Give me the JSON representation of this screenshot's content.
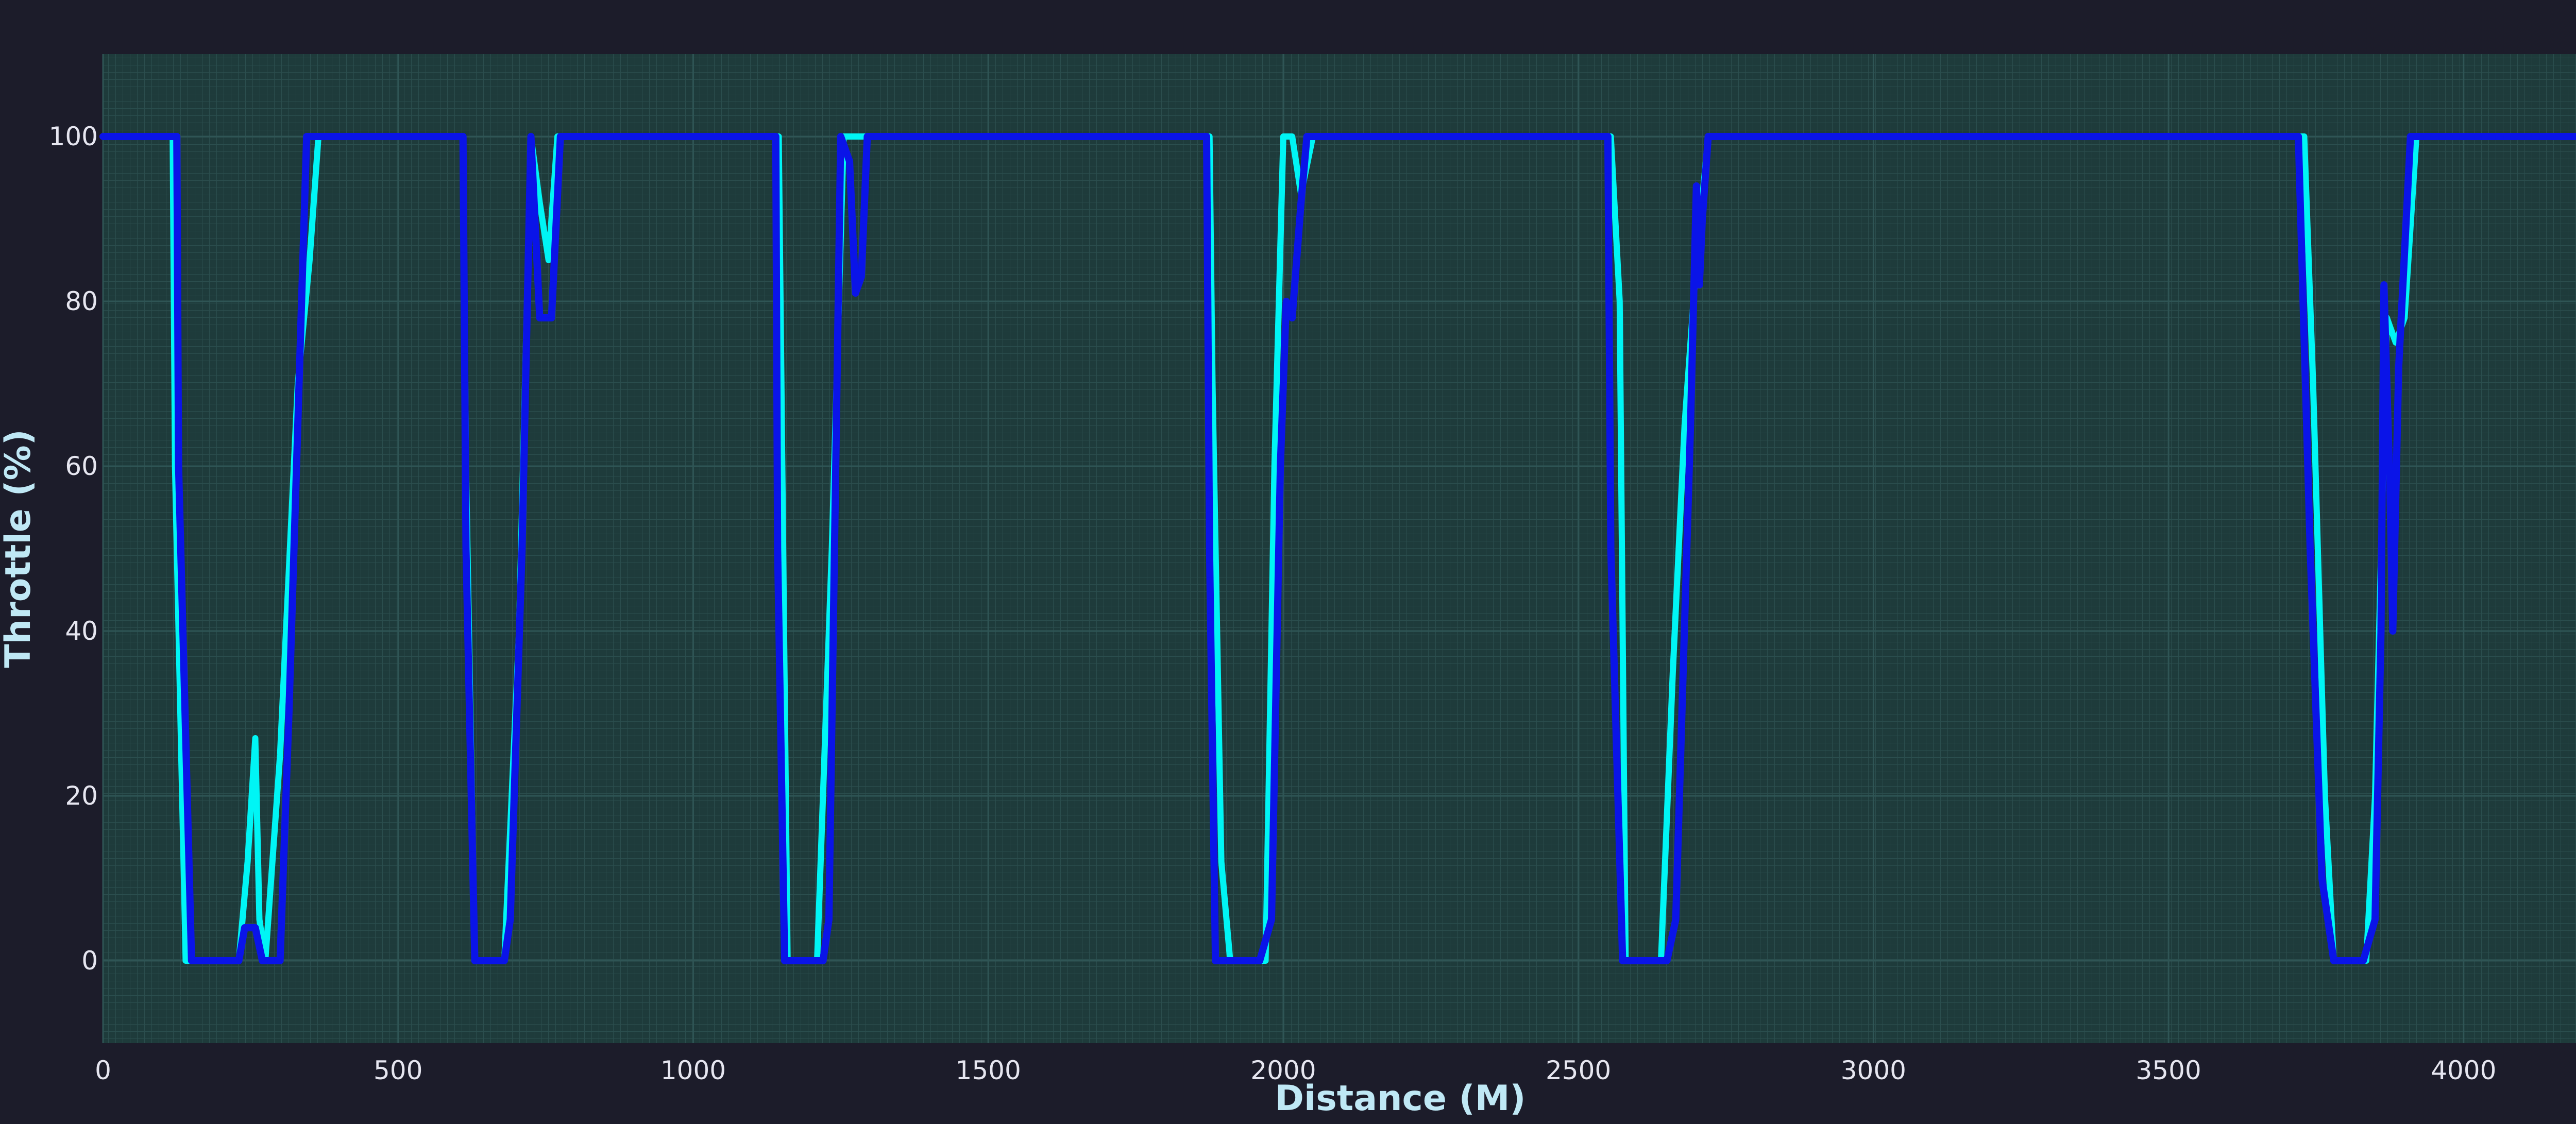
{
  "chart_data": {
    "type": "line",
    "title": "",
    "xlabel": "Distance (M)",
    "ylabel": "Throttle (%)",
    "xlim": [
      0,
      4400
    ],
    "ylim": [
      -10,
      110
    ],
    "x_ticks": [
      0,
      500,
      1000,
      1500,
      2000,
      2500,
      3000,
      3500,
      4000
    ],
    "y_ticks": [
      0,
      20,
      40,
      60,
      80,
      100
    ],
    "grid": true,
    "legend": "none",
    "colors": {
      "background": "#1c1c2a",
      "plot_background": "#1e3b3b",
      "grid": "#2f5555",
      "series_1": "#00f5f5",
      "series_2": "#0a14e8"
    },
    "series": [
      {
        "x": [
          0,
          118,
          122,
          140,
          145,
          230,
          245,
          258,
          265,
          275,
          300,
          330,
          350,
          365,
          610,
          615,
          630,
          680,
          705,
          725,
          740,
          755,
          770,
          790,
          1145,
          1148,
          1160,
          1210,
          1235,
          1255,
          1268,
          1290,
          1875,
          1880,
          1895,
          1910,
          1970,
          1985,
          2000,
          2015,
          2030,
          2050,
          2555,
          2570,
          2580,
          2640,
          2660,
          2680,
          2700,
          2720,
          3730,
          3745,
          3765,
          3780,
          3800,
          3835,
          3850,
          3870,
          3885,
          3900,
          3920,
          4330
        ],
        "values": [
          100,
          100,
          60,
          0,
          0,
          0,
          12,
          27,
          5,
          0,
          25,
          70,
          85,
          100,
          100,
          60,
          0,
          0,
          40,
          100,
          92,
          85,
          100,
          100,
          100,
          80,
          0,
          0,
          50,
          100,
          100,
          100,
          100,
          70,
          12,
          0,
          0,
          60,
          100,
          100,
          93,
          100,
          100,
          80,
          0,
          0,
          35,
          65,
          85,
          100,
          100,
          70,
          20,
          0,
          0,
          0,
          20,
          78,
          75,
          78,
          100,
          100
        ]
      },
      {
        "x": [
          0,
          125,
          128,
          150,
          160,
          230,
          240,
          258,
          270,
          300,
          315,
          345,
          360,
          610,
          615,
          630,
          680,
          690,
          710,
          725,
          740,
          760,
          775,
          785,
          1140,
          1143,
          1155,
          1220,
          1230,
          1250,
          1265,
          1275,
          1285,
          1295,
          1870,
          1875,
          1885,
          1960,
          1980,
          1995,
          2005,
          2015,
          2030,
          2040,
          2550,
          2555,
          2575,
          2650,
          2665,
          2690,
          2700,
          2705,
          2710,
          2720,
          3720,
          3740,
          3760,
          3780,
          3830,
          3850,
          3860,
          3865,
          3875,
          3880,
          3890,
          3910,
          3915,
          4318,
          4326
        ],
        "values": [
          100,
          100,
          60,
          0,
          0,
          0,
          4,
          4,
          0,
          0,
          30,
          100,
          100,
          100,
          50,
          0,
          0,
          5,
          50,
          100,
          78,
          78,
          100,
          100,
          100,
          50,
          0,
          0,
          5,
          100,
          97,
          81,
          83,
          100,
          100,
          50,
          0,
          0,
          5,
          60,
          80,
          78,
          92,
          100,
          100,
          50,
          0,
          0,
          5,
          65,
          94,
          82,
          90,
          100,
          100,
          50,
          10,
          0,
          0,
          5,
          40,
          82,
          58,
          40,
          72,
          100,
          100,
          100,
          91
        ]
      }
    ]
  }
}
